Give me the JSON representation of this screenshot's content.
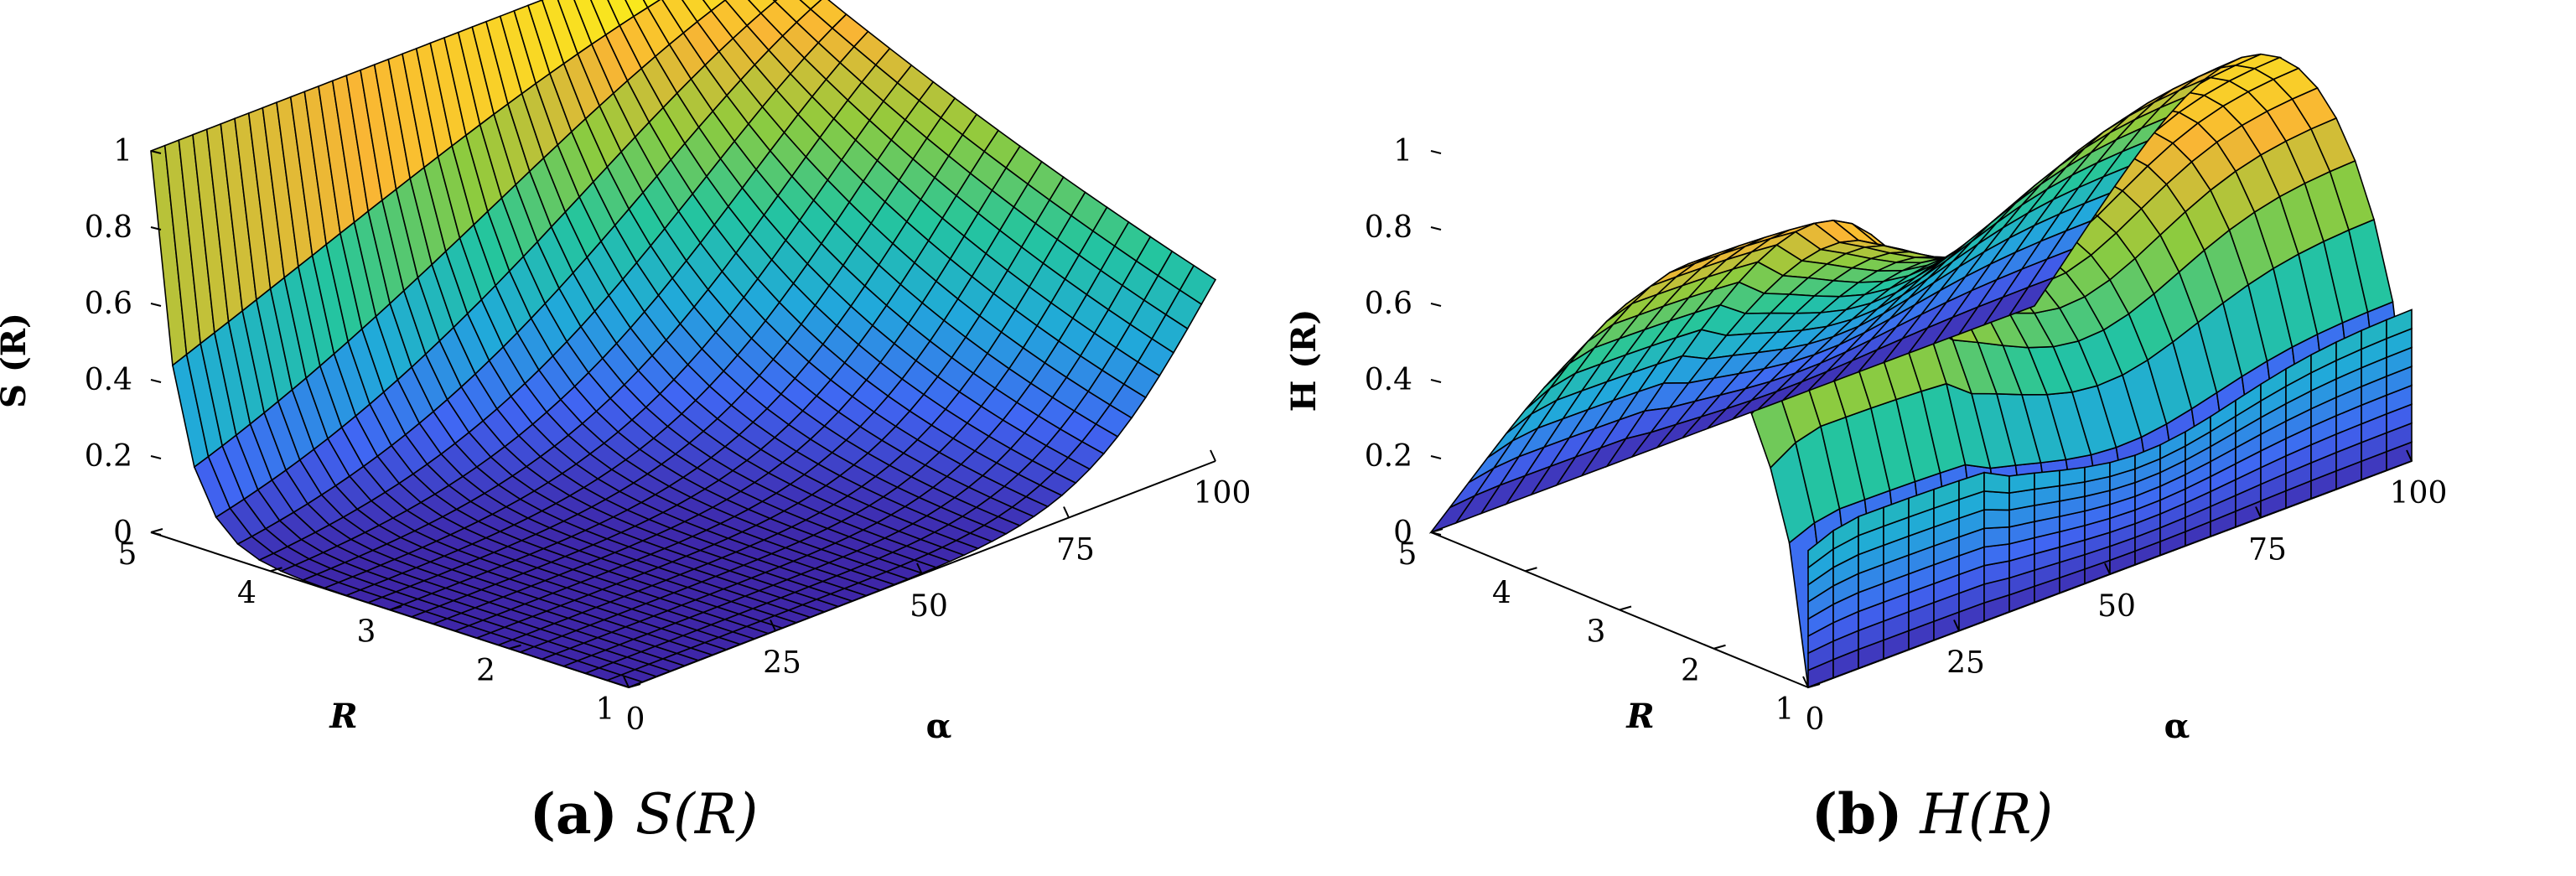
{
  "chart_data": [
    {
      "type": "surface",
      "id": "a",
      "function": "S",
      "x": {
        "label": "α",
        "range": [
          0,
          100
        ],
        "ticks": [
          "0",
          "25",
          "50",
          "75",
          "100"
        ]
      },
      "y": {
        "label": "R",
        "range": [
          1,
          5
        ],
        "ticks": [
          "1",
          "2",
          "3",
          "4",
          "5"
        ]
      },
      "z": {
        "label": "S (R)",
        "range": [
          0,
          1
        ],
        "ticks": [
          "0",
          "0.2",
          "0.4",
          "0.6",
          "0.8",
          "1"
        ]
      },
      "sample_surface_rows_alpha": [
        0,
        25,
        50,
        75,
        100
      ],
      "sample_surface_cols_R": [
        1,
        2,
        3,
        4,
        5
      ],
      "sample_values": [
        [
          0.0,
          0.0,
          0.0,
          0.01,
          1.0
        ],
        [
          0.0,
          0.05,
          0.2,
          0.45,
          1.0
        ],
        [
          0.02,
          0.15,
          0.35,
          0.6,
          1.0
        ],
        [
          0.05,
          0.25,
          0.45,
          0.7,
          1.0
        ],
        [
          0.1,
          0.3,
          0.55,
          0.75,
          1.0
        ]
      ],
      "caption_letter": "(a)",
      "caption_math": "S(R)",
      "colormap": [
        "#3e26a8",
        "#4066f3",
        "#21a9da",
        "#24c59e",
        "#8fcb3d",
        "#f9b534",
        "#f9fb15"
      ]
    },
    {
      "type": "surface",
      "id": "b",
      "function": "H",
      "x": {
        "label": "α",
        "range": [
          0,
          100
        ],
        "ticks": [
          "0",
          "25",
          "50",
          "75",
          "100"
        ]
      },
      "y": {
        "label": "R",
        "range": [
          1,
          5
        ],
        "ticks": [
          "1",
          "2",
          "3",
          "4",
          "5"
        ]
      },
      "z": {
        "label": "H (R)",
        "range": [
          0,
          1
        ],
        "ticks": [
          "0",
          "0.2",
          "0.4",
          "0.6",
          "0.8",
          "1"
        ]
      },
      "sample_surface_rows_alpha": [
        0,
        25,
        50,
        75,
        100
      ],
      "sample_surface_cols_R": [
        1,
        2,
        3,
        4,
        5
      ],
      "sample_values": [
        [
          0.0,
          0.0,
          0.0,
          0.0,
          0.0
        ],
        [
          0.0,
          0.55,
          0.75,
          0.85,
          0.0
        ],
        [
          0.0,
          0.6,
          0.8,
          0.9,
          0.0
        ],
        [
          0.0,
          0.5,
          0.75,
          0.88,
          0.0
        ],
        [
          0.0,
          0.45,
          0.7,
          0.85,
          0.0
        ]
      ],
      "caption_letter": "(b)",
      "caption_math": "H(R)",
      "colormap": [
        "#3e26a8",
        "#4066f3",
        "#21a9da",
        "#24c59e",
        "#8fcb3d",
        "#f9b534",
        "#f9fb15"
      ]
    }
  ]
}
